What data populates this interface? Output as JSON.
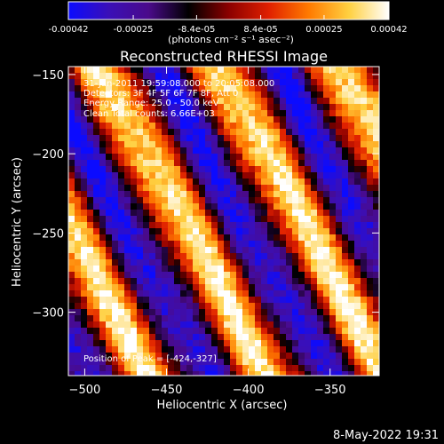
{
  "chart_data": {
    "type": "heatmap",
    "title": "Reconstructed RHESSI Image",
    "xlabel": "Heliocentric X (arcsec)",
    "ylabel": "Heliocentric Y (arcsec)",
    "xlim": [
      -510,
      -320
    ],
    "ylim": [
      -340,
      -145
    ],
    "xticks": [
      -500,
      -450,
      -400,
      -350
    ],
    "yticks": [
      -150,
      -200,
      -250,
      -300
    ],
    "colorbar": {
      "min": -0.00042,
      "max": 0.00042,
      "tick_values": [
        -0.00042,
        -0.00025,
        -8.4e-05,
        8.4e-05,
        0.00025,
        0.00042
      ],
      "tick_labels": [
        "-0.00042",
        "-0.00025",
        "-8.4e-05",
        "8.4e-05",
        "0.00025",
        "0.00042"
      ],
      "unit_label": "(photons cm⁻² s⁻¹ asec⁻²)",
      "colors": [
        "#0b0bff",
        "#3a0fb8",
        "#4a0a8a",
        "#000000",
        "#8b0000",
        "#e02000",
        "#ff7a00",
        "#ffd040",
        "#ffffff"
      ]
    },
    "annotations": [
      "31-Jan-2011 19:59:08.000 to 20:05:08.000",
      "Detectors: 3F 4F 5F 6F 7F 8F, Att 0",
      "Energy Range: 25.0 - 50.0 keV",
      "Clean    Total counts: 6.66E+03"
    ],
    "peak_label": "Position of Peak = [-424,-327]"
  },
  "footer": {
    "date": "8-May-2022 19:31"
  }
}
